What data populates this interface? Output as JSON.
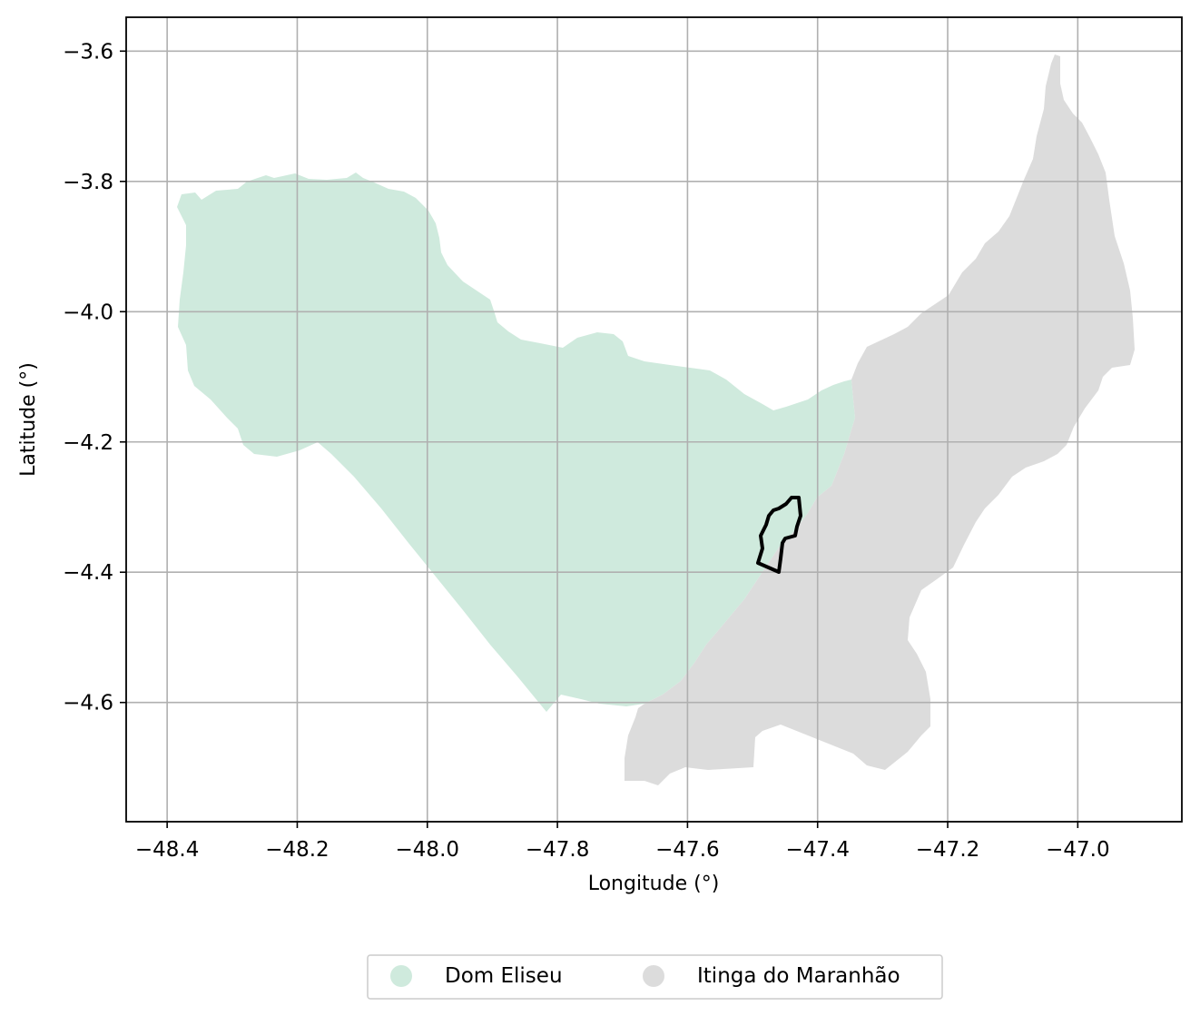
{
  "map": {
    "xlabel": "Longitude (°)",
    "ylabel": "Latitude (°)",
    "grid": true,
    "x_ticks": [
      -48.4,
      -48.2,
      -48.0,
      -47.8,
      -47.6,
      -47.4,
      -47.2,
      -47.0
    ],
    "x_tick_labels": [
      "−48.4",
      "−48.2",
      "−48.0",
      "−47.8",
      "−47.6",
      "−47.4",
      "−47.2",
      "−47.0"
    ],
    "y_ticks": [
      -3.6,
      -3.8,
      -4.0,
      -4.2,
      -4.4,
      -4.6
    ],
    "y_tick_labels": [
      "−3.6",
      "−3.8",
      "−4.0",
      "−4.2",
      "−4.4",
      "−4.6"
    ],
    "xlim": [
      -48.463,
      -46.84
    ],
    "ylim": [
      -4.783,
      -3.548
    ],
    "legend": {
      "placement": "bottom-center",
      "entries": [
        {
          "label": "Dom Eliseu",
          "color": "#cfeadd"
        },
        {
          "label": "Itinga do Maranhão",
          "color": "#dcdcdc"
        }
      ]
    },
    "colors": {
      "dom_eliseu": "#cfeadd",
      "itinga": "#dcdcdc",
      "outline": "#000000",
      "grid": "#b0b0b0"
    }
  }
}
